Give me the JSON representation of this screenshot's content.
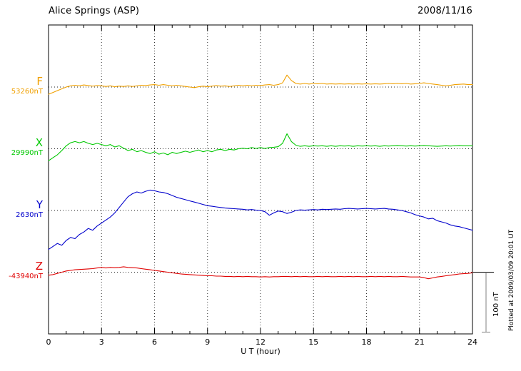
{
  "footer": {
    "plotted_at": "Plotted at 2009/03/09 20:01 UT"
  },
  "scale_bar": {
    "label": "100 nT",
    "span_nT": 100
  },
  "chart_data": {
    "type": "line",
    "title": "Alice Springs (ASP)",
    "date": "2008/11/16",
    "xlabel": "U T (hour)",
    "x_range": [
      0,
      24
    ],
    "x_tick_labels": [
      "0",
      "3",
      "6",
      "9",
      "12",
      "15",
      "18",
      "21",
      "24"
    ],
    "x_minor_tick_hours": 1,
    "x_major_tick_hours": 3,
    "x_step_hours": 0.25,
    "grid": "vertical-dotted-at-major-ticks, horizontal-dotted-baseline-per-trace",
    "values_are": "offset_nT_from_baseline",
    "y_scale_reference": {
      "label": "100 nT",
      "nT": 100
    },
    "series": [
      {
        "label": "F",
        "baseline_label": "53260nT",
        "baseline_nT": 53260,
        "color": "#F0A000",
        "values": [
          -12,
          -9,
          -6,
          -3,
          0,
          2,
          3,
          2,
          3.5,
          2.5,
          1.5,
          2.5,
          2,
          1,
          2,
          0.5,
          1.5,
          1,
          2,
          1,
          2,
          3,
          2.5,
          3.5,
          4,
          3,
          4,
          3,
          2,
          3,
          2,
          1,
          0,
          -1,
          0.5,
          1.5,
          0.5,
          1.5,
          2.5,
          1.5,
          2,
          1,
          2,
          3,
          2,
          3,
          2,
          3,
          2.5,
          3.5,
          4,
          3,
          4,
          7,
          20,
          11,
          6,
          5,
          6,
          5,
          6,
          5.5,
          6,
          5,
          5.5,
          5,
          5.5,
          5,
          5.5,
          5,
          5.5,
          5,
          5.5,
          5,
          5.5,
          5,
          5.5,
          6,
          5.5,
          6,
          5.5,
          6,
          5,
          5.5,
          6,
          7,
          6,
          5,
          4,
          3,
          2,
          3,
          4,
          4.5,
          5,
          4,
          4
        ]
      },
      {
        "label": "X",
        "baseline_label": "29990nT",
        "baseline_nT": 29990,
        "color": "#00C800",
        "values": [
          -20,
          -15,
          -10,
          -3,
          5,
          10,
          12,
          10,
          12,
          9,
          7,
          9,
          7,
          5,
          7,
          3,
          5,
          1,
          -3,
          -1,
          -5,
          -3,
          -6,
          -8,
          -5,
          -9,
          -7,
          -10,
          -6,
          -8,
          -6,
          -4,
          -6,
          -4,
          -2,
          -5,
          -3,
          -5,
          -2,
          -1,
          -3,
          -1,
          -2,
          0,
          1,
          0,
          2,
          0.5,
          2,
          0.5,
          2,
          2.5,
          3.5,
          9,
          25,
          12,
          6,
          4,
          5,
          4,
          5,
          4.5,
          5,
          4,
          5,
          4,
          5,
          4.5,
          5,
          4,
          5,
          4.5,
          5,
          4.5,
          5,
          4,
          5,
          4.5,
          5,
          5.5,
          5,
          4.5,
          5,
          4.5,
          5,
          5.5,
          5,
          4.5,
          4,
          4.5,
          5,
          4.5,
          5,
          5.5,
          5,
          5,
          5
        ]
      },
      {
        "label": "Y",
        "baseline_label": "2630nT",
        "baseline_nT": 2630,
        "color": "#0000CC",
        "values": [
          -65,
          -60,
          -55,
          -58,
          -50,
          -45,
          -47,
          -40,
          -36,
          -30,
          -33,
          -26,
          -21,
          -16,
          -11,
          -4,
          5,
          14,
          23,
          28,
          31,
          29,
          32,
          34,
          33,
          31,
          30,
          28,
          25,
          22,
          20,
          18,
          16,
          14,
          12,
          10,
          8,
          7,
          6,
          5,
          4,
          3.5,
          3,
          2.5,
          2,
          1,
          1.5,
          0.5,
          0,
          -2,
          -8,
          -4,
          -1,
          -2,
          -5,
          -3,
          0,
          1,
          0.5,
          1,
          1.5,
          1,
          2,
          1.5,
          2,
          2.5,
          2,
          3,
          3.5,
          3,
          2.5,
          3,
          3.5,
          3,
          2.5,
          3,
          3.5,
          2.5,
          2,
          1,
          0,
          -2,
          -4,
          -7,
          -9,
          -11,
          -14,
          -13,
          -17,
          -19,
          -21,
          -24,
          -26,
          -27,
          -29,
          -31,
          -33
        ]
      },
      {
        "label": "Z",
        "baseline_label": "-43940nT",
        "baseline_nT": -43940,
        "color": "#E00000",
        "values": [
          -5,
          -4,
          -2,
          0,
          2,
          3,
          4,
          4.5,
          5,
          5.5,
          6,
          7,
          8,
          7,
          8,
          7.5,
          8,
          9,
          8,
          7.5,
          7,
          6,
          5,
          4,
          3,
          2,
          1,
          0,
          -1,
          -2,
          -3,
          -3.5,
          -4,
          -4.5,
          -5,
          -5.5,
          -6,
          -6,
          -6.5,
          -6.5,
          -7,
          -7,
          -7.5,
          -7,
          -7.5,
          -7,
          -7.5,
          -7.5,
          -8,
          -7.5,
          -8,
          -7.5,
          -7.5,
          -7,
          -7,
          -7.5,
          -7,
          -7.5,
          -7,
          -7.5,
          -7.5,
          -7,
          -7.5,
          -7,
          -7.5,
          -7.5,
          -7,
          -7.5,
          -7,
          -7.5,
          -7,
          -7.5,
          -7.5,
          -7,
          -7.5,
          -7,
          -7.5,
          -7,
          -7.5,
          -7.5,
          -7,
          -7.5,
          -8,
          -8,
          -8,
          -9,
          -11,
          -9.5,
          -8,
          -7,
          -6,
          -5,
          -4,
          -3,
          -2.5,
          -2,
          -1
        ]
      }
    ]
  }
}
